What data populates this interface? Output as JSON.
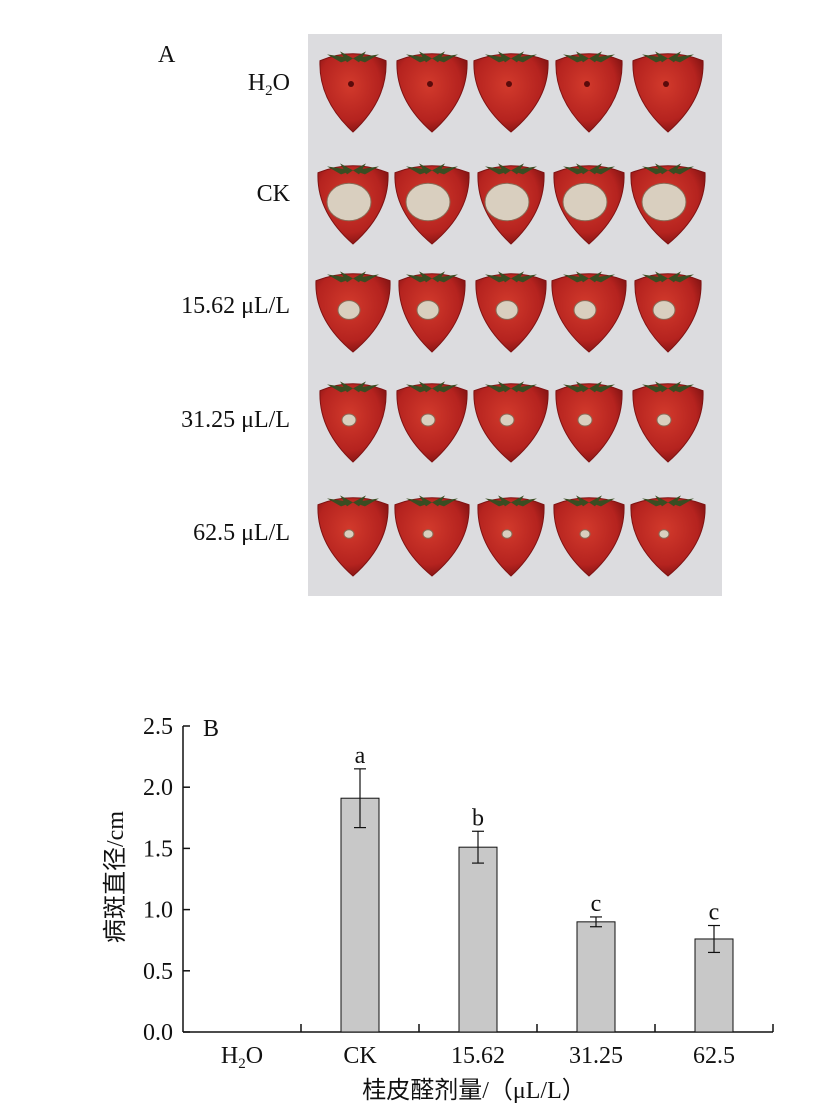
{
  "panel_a": {
    "label": "A",
    "row_labels": [
      "H2O",
      "CK",
      "15.62 μL/L",
      "31.25 μL/L",
      "62.5 μL/L"
    ],
    "colors": {
      "background": "#dcdcdf",
      "berry": "#b5231f",
      "berry_dark": "#7e1212",
      "leaf": "#3a4d22",
      "lesion": "#d9cfbf"
    }
  },
  "chart_data": {
    "type": "bar",
    "panel_label": "B",
    "categories": [
      "H2O",
      "CK",
      "15.62",
      "31.25",
      "62.5"
    ],
    "values": [
      0,
      1.91,
      1.51,
      0.9,
      0.76
    ],
    "errors": [
      0,
      0.24,
      0.13,
      0.04,
      0.11
    ],
    "significance": [
      "",
      "a",
      "b",
      "c",
      "c"
    ],
    "xlabel": "桂皮醛剂量/（μL/L）",
    "ylabel": "病斑直径/cm",
    "ylim": [
      0,
      2.5
    ],
    "yticks": [
      "0.0",
      "0.5",
      "1.0",
      "1.5",
      "2.0",
      "2.5"
    ],
    "grid": false,
    "bar_color": "#c8c8c8"
  }
}
